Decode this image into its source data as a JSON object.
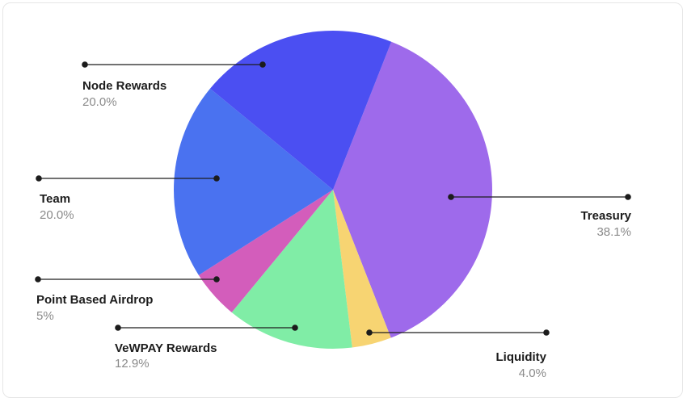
{
  "chart_data": {
    "type": "pie",
    "title": "",
    "slices": [
      {
        "label": "Treasury",
        "value_text": "38.1%",
        "value": 38.1,
        "color": "#9E6AEB"
      },
      {
        "label": "Liquidity",
        "value_text": "4.0%",
        "value": 4.0,
        "color": "#F7D472"
      },
      {
        "label": "VeWPAY Rewards",
        "value_text": "12.9%",
        "value": 12.9,
        "color": "#80EDA6"
      },
      {
        "label": "Point Based Airdrop",
        "value_text": "5%",
        "value": 5.0,
        "color": "#D35DBB"
      },
      {
        "label": "Team",
        "value_text": "20.0%",
        "value": 20.0,
        "color": "#4A72F0"
      },
      {
        "label": "Node Rewards",
        "value_text": "20.0%",
        "value": 20.0,
        "color": "#4B4FF2"
      }
    ]
  }
}
